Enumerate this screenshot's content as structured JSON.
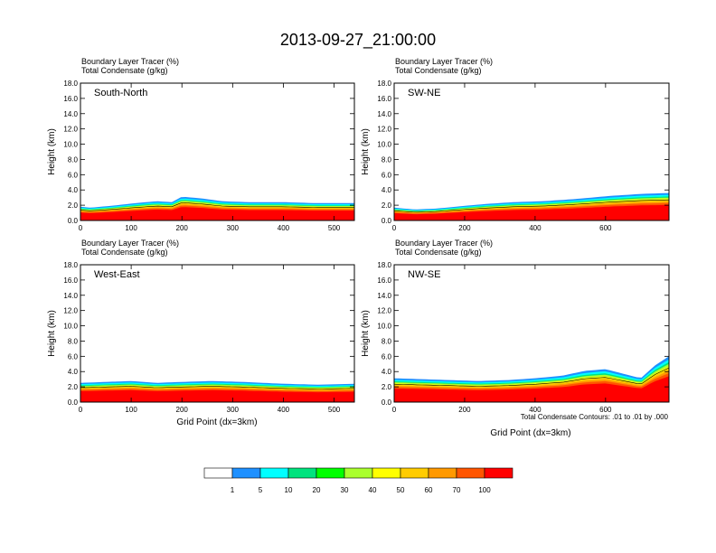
{
  "title": "2013-09-27_21:00:00",
  "panel_header": {
    "line1": "Boundary Layer Tracer   (%)",
    "line2": "Total Condensate   (g/kg)"
  },
  "ylabel": "Height (km)",
  "xlabel": "Grid Point (dx=3km)",
  "contour_note": "Total Condensate Contours: .01 to .01 by .000",
  "y_ticks": [
    "0.0",
    "2.0",
    "4.0",
    "6.0",
    "8.0",
    "10.0",
    "12.0",
    "14.0",
    "16.0",
    "18.0"
  ],
  "colorbar": {
    "labels": [
      "1",
      "5",
      "10",
      "20",
      "30",
      "40",
      "50",
      "60",
      "70",
      "100"
    ],
    "colors": [
      "#ffffff",
      "#1e90ff",
      "#00ffff",
      "#00e37e",
      "#00ff00",
      "#aaff2e",
      "#ffff00",
      "#ffcc00",
      "#ff9900",
      "#ff5500",
      "#ff0000"
    ]
  },
  "chart_data": [
    {
      "type": "heatmap",
      "label": "South-North",
      "xlim": [
        0,
        540
      ],
      "ylim": [
        0,
        18
      ],
      "x_ticks": [
        0,
        100,
        200,
        300,
        400,
        500
      ],
      "blh": [
        [
          0,
          1.5
        ],
        [
          20,
          1.4
        ],
        [
          60,
          1.6
        ],
        [
          110,
          1.9
        ],
        [
          150,
          2.1
        ],
        [
          180,
          2.0
        ],
        [
          200,
          2.6
        ],
        [
          240,
          2.4
        ],
        [
          280,
          2.1
        ],
        [
          330,
          2.0
        ],
        [
          400,
          2.0
        ],
        [
          460,
          1.9
        ],
        [
          540,
          1.9
        ]
      ]
    },
    {
      "type": "heatmap",
      "label": "SW-NE",
      "xlim": [
        0,
        780
      ],
      "ylim": [
        0,
        18
      ],
      "x_ticks": [
        0,
        200,
        400,
        600
      ],
      "blh": [
        [
          0,
          1.4
        ],
        [
          60,
          1.2
        ],
        [
          120,
          1.3
        ],
        [
          200,
          1.6
        ],
        [
          260,
          1.8
        ],
        [
          340,
          2.0
        ],
        [
          420,
          2.1
        ],
        [
          500,
          2.3
        ],
        [
          560,
          2.5
        ],
        [
          620,
          2.7
        ],
        [
          700,
          2.9
        ],
        [
          780,
          3.0
        ]
      ]
    },
    {
      "type": "heatmap",
      "label": "West-East",
      "xlim": [
        0,
        540
      ],
      "ylim": [
        0,
        18
      ],
      "x_ticks": [
        0,
        100,
        200,
        300,
        400,
        500
      ],
      "blh": [
        [
          0,
          2.1
        ],
        [
          50,
          2.2
        ],
        [
          100,
          2.3
        ],
        [
          150,
          2.1
        ],
        [
          200,
          2.2
        ],
        [
          260,
          2.3
        ],
        [
          320,
          2.2
        ],
        [
          400,
          2.0
        ],
        [
          470,
          1.9
        ],
        [
          540,
          2.0
        ]
      ]
    },
    {
      "type": "heatmap",
      "label": "NW-SE",
      "xlim": [
        0,
        780
      ],
      "ylim": [
        0,
        18
      ],
      "x_ticks": [
        0,
        200,
        400,
        600
      ],
      "blh": [
        [
          0,
          2.6
        ],
        [
          80,
          2.5
        ],
        [
          160,
          2.4
        ],
        [
          240,
          2.3
        ],
        [
          320,
          2.4
        ],
        [
          400,
          2.6
        ],
        [
          480,
          2.9
        ],
        [
          540,
          3.4
        ],
        [
          600,
          3.6
        ],
        [
          660,
          3.0
        ],
        [
          700,
          2.6
        ],
        [
          740,
          4.0
        ],
        [
          780,
          5.0
        ]
      ]
    }
  ]
}
